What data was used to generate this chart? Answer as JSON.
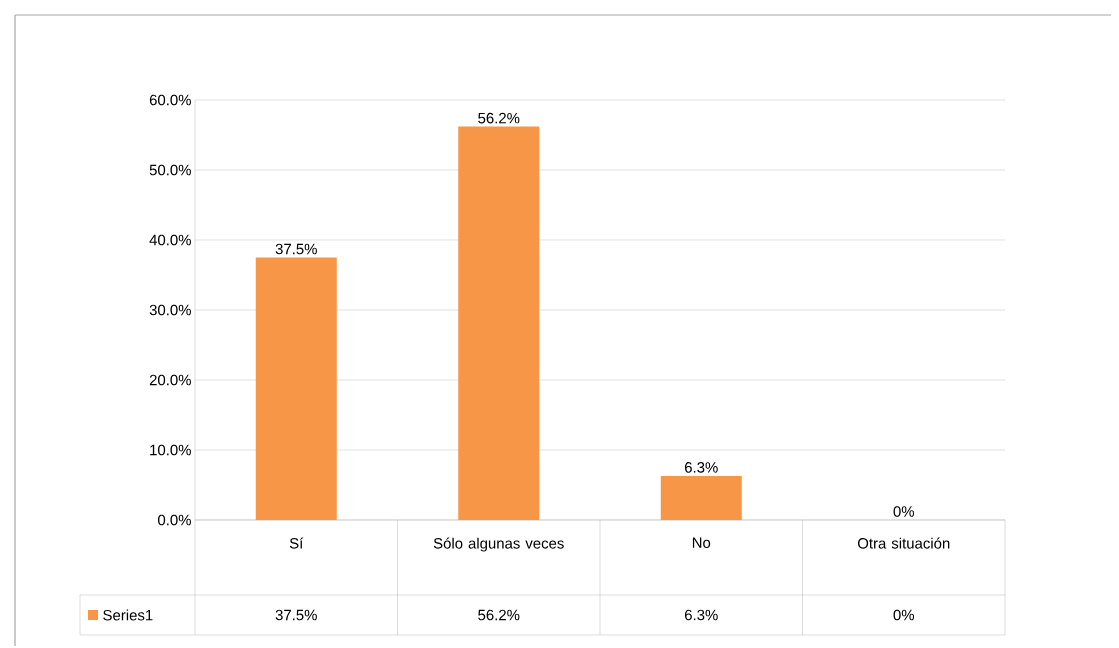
{
  "chart_data": {
    "type": "bar",
    "categories": [
      "Sí",
      "Sólo algunas veces",
      "No",
      "Otra situación"
    ],
    "series": [
      {
        "name": "Series1",
        "color": "#f79646",
        "values": [
          37.5,
          56.2,
          6.3,
          0
        ]
      }
    ],
    "value_labels": [
      "37.5%",
      "56.2%",
      "6.3%",
      "0%"
    ],
    "ylim": [
      0,
      60
    ],
    "yticks": [
      {
        "value": 0,
        "label": "0.0%"
      },
      {
        "value": 10,
        "label": "10.0%"
      },
      {
        "value": 20,
        "label": "20.0%"
      },
      {
        "value": 30,
        "label": "30.0%"
      },
      {
        "value": 40,
        "label": "40.0%"
      },
      {
        "value": 50,
        "label": "50.0%"
      },
      {
        "value": 60,
        "label": "60.0%"
      }
    ],
    "grid": "y",
    "legend": "bottom"
  }
}
